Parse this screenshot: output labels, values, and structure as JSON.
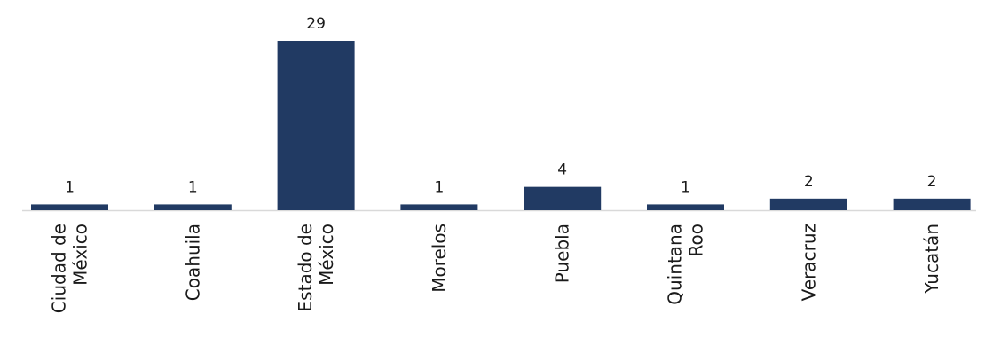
{
  "chart_data": {
    "type": "bar",
    "categories": [
      [
        "Ciudad de",
        "México"
      ],
      [
        "Coahuila"
      ],
      [
        "Estado de",
        "México"
      ],
      [
        "Morelos"
      ],
      [
        "Puebla"
      ],
      [
        "Quintana",
        "Roo"
      ],
      [
        "Veracruz"
      ],
      [
        "Yucatán"
      ]
    ],
    "values": [
      1,
      1,
      29,
      1,
      4,
      1,
      2,
      2
    ],
    "title": "",
    "xlabel": "",
    "ylabel": "",
    "ylim": [
      0,
      29
    ],
    "grid": false,
    "legend": "none",
    "bar_color": "#213a63",
    "axis_color": "#d9d9d9",
    "data_labels": true
  }
}
